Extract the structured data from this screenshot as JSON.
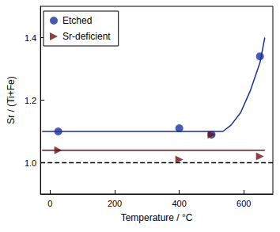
{
  "chart_data": {
    "type": "scatter",
    "x_label": "Temperature / °C",
    "y_label": "Sr / (Ti+Fe)",
    "xlim": [
      -30,
      690
    ],
    "xticks": [
      0,
      200,
      400,
      600
    ],
    "ylim": [
      0.9,
      1.5
    ],
    "yticks": [
      {
        "value": 1,
        "label": "1.0"
      },
      1.2,
      1.4
    ],
    "legend": "upper left",
    "grid": false,
    "series": [
      {
        "name": "Etched",
        "type": "scatter",
        "marker": "circle",
        "color": "#1a2ea0",
        "x": [
          25,
          400,
          500,
          650
        ],
        "values": [
          1.1,
          1.11,
          1.09,
          1.34
        ]
      },
      {
        "name": "Sr-deficient",
        "type": "scatter",
        "marker": "triangle-right",
        "color": "#6e1212",
        "x": [
          25,
          400,
          500,
          650
        ],
        "values": [
          1.04,
          1.01,
          1.09,
          1.02
        ]
      },
      {
        "type": "line",
        "color": "#1a2ea0",
        "line_style": "solid",
        "x": [
          -25,
          535,
          560,
          590,
          620,
          650,
          665
        ],
        "values": [
          1.1,
          1.1,
          1.12,
          1.16,
          1.23,
          1.32,
          1.4
        ]
      },
      {
        "type": "line",
        "color": "#6e1212",
        "line_style": "solid",
        "x": [
          -25,
          665
        ],
        "values": [
          1.04,
          1.04
        ]
      },
      {
        "type": "line",
        "color": "#000000",
        "line_style": "dashed",
        "x": [
          -30,
          690
        ],
        "values": [
          1.0,
          1.0
        ]
      }
    ]
  }
}
